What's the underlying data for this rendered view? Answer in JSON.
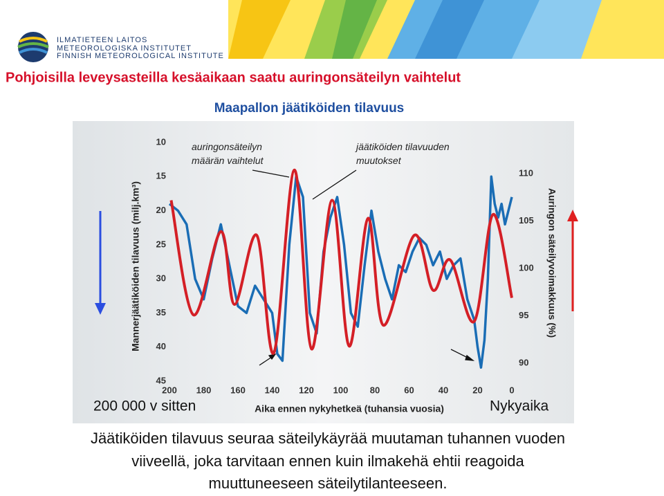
{
  "header": {
    "logo_lines": [
      "ILMATIETEEN LAITOS",
      "METEOROLOGISKA INSTITUTET",
      "FINNISH METEOROLOGICAL INSTITUTE"
    ],
    "title": "Pohjoisilla leveysasteilla kesäaikaan saatu auringonsäteilyn vaihtelut",
    "subtitle": "Maapallon jäätiköiden tilavuus"
  },
  "chart_data": {
    "type": "line",
    "y_label": "Mannerjäätiköiden tilavuus (milj.km³)",
    "y2_label": "Auringon säteilyvoimakkuus (%)",
    "x_label": "Aika ennen nykyhetkeä (tuhansia vuosia)",
    "start_label": "200 000 v sitten",
    "end_label": "Nykyaika",
    "xlim": [
      200,
      0
    ],
    "xticks": [
      200,
      180,
      160,
      140,
      120,
      100,
      80,
      60,
      40,
      20,
      0
    ],
    "ylim": [
      45,
      10
    ],
    "yticks": [
      10,
      15,
      20,
      25,
      30,
      35,
      40,
      45
    ],
    "y2lim": [
      88.1,
      113.3
    ],
    "y2ticks": [
      90,
      95,
      100,
      105,
      110
    ],
    "series": [
      {
        "name": "jäätiköiden tilavuuden muutokset",
        "color": "#1a6db5",
        "axis": "y",
        "x": [
          200,
          195,
          190,
          185,
          180,
          175,
          170,
          165,
          160,
          155,
          150,
          145,
          140,
          137,
          134,
          130,
          126,
          122,
          118,
          114,
          110,
          106,
          102,
          98,
          94,
          90,
          86,
          82,
          78,
          74,
          70,
          66,
          62,
          58,
          54,
          50,
          46,
          42,
          38,
          34,
          30,
          26,
          22,
          20,
          18,
          16,
          14,
          12,
          10,
          8,
          6,
          4,
          2,
          0
        ],
        "values": [
          19,
          20,
          22,
          30,
          33,
          27,
          22,
          28,
          34,
          35,
          31,
          33,
          35,
          41,
          42,
          25,
          15,
          18,
          35,
          38,
          26,
          21,
          18,
          25,
          35,
          37,
          28,
          20,
          26,
          30,
          33,
          28,
          29,
          26,
          24,
          25,
          28,
          26,
          30,
          28,
          27,
          33,
          36,
          40,
          43,
          39,
          30,
          15,
          19,
          21,
          19,
          22,
          20,
          18
        ]
      },
      {
        "name": "auringonsäteilyn määrän vaihtelut",
        "color": "#d41f26",
        "axis": "y2",
        "x": [
          199,
          186,
          170,
          162,
          149,
          139,
          127,
          117,
          105,
          95,
          84,
          75,
          57,
          46,
          36,
          22,
          11,
          0
        ],
        "values": [
          107.2,
          95.1,
          103.9,
          96.2,
          103.5,
          91.1,
          110.4,
          91.5,
          107.2,
          91.8,
          105.3,
          94.0,
          103.5,
          97.7,
          100.9,
          94.4,
          105.7,
          96.9
        ]
      }
    ]
  },
  "caption": [
    "Jäätiköiden tilavuus seuraa säteilykäyrää muutaman tuhannen vuoden",
    "viiveellä, joka tarvitaan ennen kuin ilmakehä ehtii reagoida",
    "muuttuneeseen säteilytilanteeseen."
  ]
}
